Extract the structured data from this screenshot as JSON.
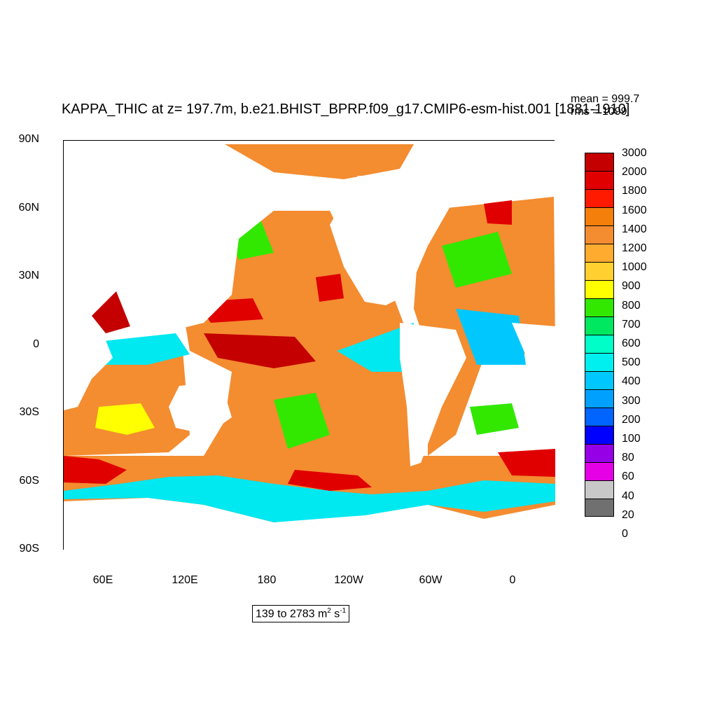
{
  "title": "KAPPA_THIC at z= 197.7m, b.e21.BHIST_BPRP.f09_g17.CMIP6-esm-hist.001 [1881-1910]",
  "stats": {
    "mean": "mean = 999.7",
    "rms": "rms = 1099"
  },
  "y_ticks": [
    "90N",
    "60N",
    "30N",
    "0",
    "30S",
    "60S",
    "90S"
  ],
  "x_ticks": [
    "60E",
    "120E",
    "180",
    "120W",
    "60W",
    "0"
  ],
  "range_text": "139 to 2783 m",
  "range_sup1": "2",
  "range_mid": " s",
  "range_sup2": "-1",
  "colorbar": {
    "labels": [
      "3000",
      "2000",
      "1800",
      "1600",
      "1400",
      "1200",
      "1000",
      "900",
      "800",
      "700",
      "600",
      "500",
      "400",
      "300",
      "200",
      "100",
      "80",
      "60",
      "40",
      "20",
      "0"
    ],
    "colors": [
      "#c40000",
      "#e00000",
      "#ff1a00",
      "#f47f0a",
      "#f48c30",
      "#ffab30",
      "#ffd030",
      "#ffff00",
      "#32e800",
      "#00e860",
      "#00ffc8",
      "#00f0f0",
      "#00c8ff",
      "#00a0ff",
      "#0064ff",
      "#0000ff",
      "#9600e6",
      "#e600e6",
      "#c8c8c8",
      "#707070"
    ]
  },
  "map_colors": {
    "land": "#ffffff",
    "ocean_base": "#f48c30"
  }
}
